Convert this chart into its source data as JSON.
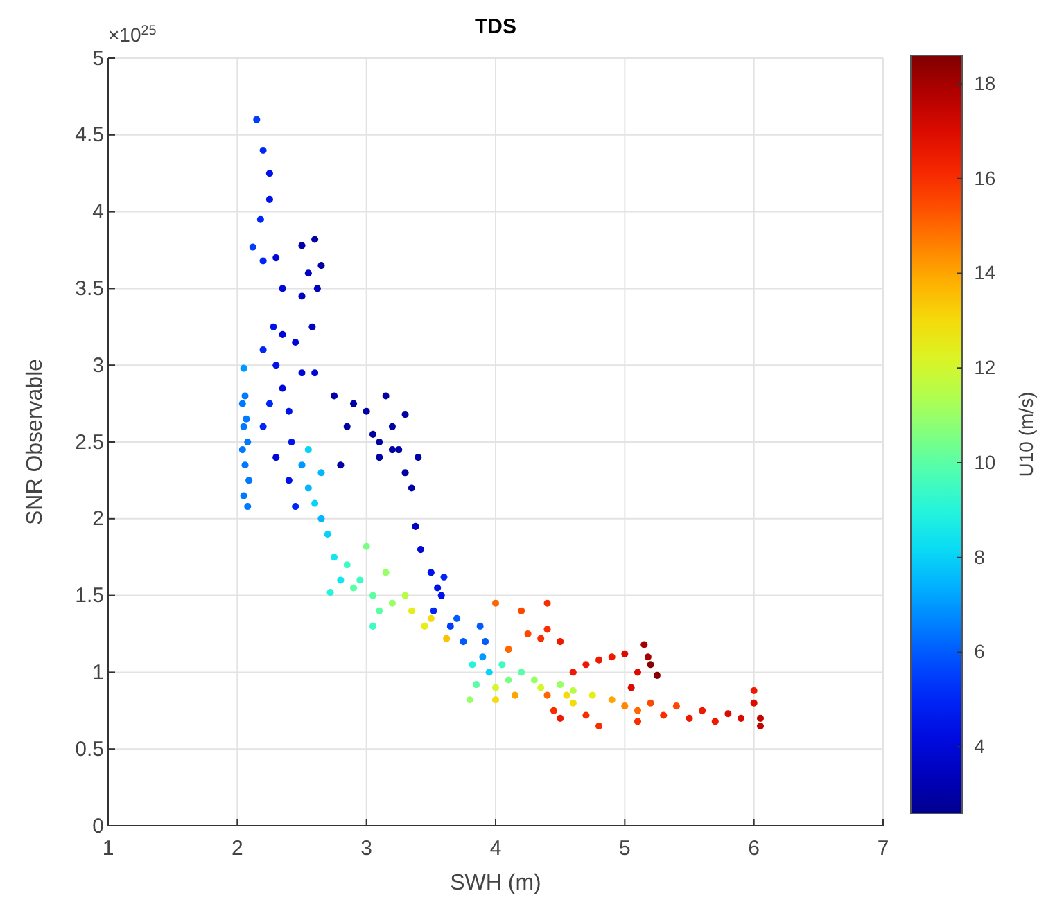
{
  "chart_data": {
    "type": "scatter",
    "title": "TDS",
    "xlabel": "SWH (m)",
    "ylabel": "SNR Observable",
    "clabel": "U10 (m/s)",
    "annotations": [
      "×10$^{25}$"
    ],
    "xlim": [
      1,
      7
    ],
    "xticks": [
      1,
      2,
      3,
      4,
      5,
      6,
      7
    ],
    "ylim": [
      0,
      5
    ],
    "yticks": [
      0,
      0.5,
      1,
      1.5,
      2,
      2.5,
      3,
      3.5,
      4,
      4.5,
      5
    ],
    "clim": [
      2.6,
      18.6
    ],
    "cticks": [
      4,
      6,
      8,
      10,
      12,
      14,
      16,
      18
    ],
    "grid": true,
    "marker": "circle",
    "x": [
      2.05,
      2.06,
      2.04,
      2.07,
      2.05,
      2.08,
      2.04,
      2.06,
      2.09,
      2.05,
      2.08,
      2.15,
      2.2,
      2.25,
      2.25,
      2.18,
      2.12,
      2.2,
      2.3,
      2.35,
      2.28,
      2.3,
      2.2,
      2.35,
      2.4,
      2.45,
      2.5,
      2.5,
      2.6,
      2.65,
      2.55,
      2.62,
      2.58,
      2.42,
      2.3,
      2.4,
      2.5,
      2.2,
      2.25,
      2.6,
      2.35,
      2.75,
      2.9,
      2.85,
      3.0,
      3.05,
      3.1,
      3.15,
      3.25,
      3.3,
      3.4,
      3.35,
      3.2,
      2.8,
      3.1,
      3.2,
      3.3,
      2.5,
      2.55,
      2.6,
      2.65,
      2.7,
      2.55,
      2.75,
      2.8,
      2.72,
      2.65,
      2.45,
      2.85,
      2.9,
      2.95,
      3.0,
      3.05,
      3.1,
      3.15,
      3.2,
      3.3,
      3.35,
      3.05,
      3.45,
      3.5,
      3.38,
      3.42,
      3.5,
      3.55,
      3.6,
      3.58,
      3.52,
      3.65,
      3.7,
      3.75,
      3.62,
      3.82,
      3.85,
      3.8,
      3.9,
      3.95,
      4.0,
      4.05,
      4.1,
      4.15,
      4.2,
      4.3,
      4.35,
      4.4,
      4.5,
      4.55,
      4.6,
      3.92,
      4.0,
      3.88,
      4.0,
      4.2,
      4.4,
      4.25,
      4.35,
      4.1,
      4.5,
      4.6,
      4.7,
      4.8,
      4.9,
      5.0,
      5.1,
      5.05,
      4.4,
      5.15,
      5.2,
      5.25,
      5.18,
      4.45,
      4.5,
      4.7,
      4.8,
      4.9,
      5.0,
      5.1,
      5.2,
      5.3,
      5.4,
      5.5,
      5.6,
      5.7,
      5.8,
      5.9,
      6.0,
      6.05,
      6.0,
      6.05,
      4.6,
      4.75,
      5.1
    ],
    "values": [
      2.98,
      2.8,
      2.75,
      2.65,
      2.6,
      2.5,
      2.45,
      2.35,
      2.25,
      2.15,
      2.08,
      4.6,
      4.4,
      4.25,
      4.08,
      3.95,
      3.77,
      3.68,
      3.7,
      3.5,
      3.25,
      3.0,
      3.1,
      2.85,
      2.7,
      3.15,
      3.45,
      3.78,
      3.82,
      3.65,
      3.6,
      3.5,
      3.25,
      2.5,
      2.4,
      2.25,
      2.95,
      2.6,
      2.75,
      2.95,
      3.2,
      2.8,
      2.75,
      2.6,
      2.7,
      2.55,
      2.5,
      2.8,
      2.45,
      2.3,
      2.4,
      2.2,
      2.6,
      2.35,
      2.4,
      2.45,
      2.68,
      2.35,
      2.2,
      2.1,
      2.0,
      1.9,
      2.45,
      1.75,
      1.6,
      1.52,
      2.3,
      2.08,
      1.7,
      1.55,
      1.6,
      1.82,
      1.5,
      1.4,
      1.65,
      1.45,
      1.5,
      1.4,
      1.3,
      1.3,
      1.35,
      1.95,
      1.8,
      1.65,
      1.55,
      1.62,
      1.5,
      1.4,
      1.3,
      1.35,
      1.2,
      1.22,
      1.05,
      0.92,
      0.82,
      1.1,
      1.0,
      0.9,
      1.05,
      0.95,
      0.85,
      1.0,
      0.95,
      0.9,
      0.85,
      0.92,
      0.85,
      0.88,
      1.2,
      0.82,
      1.3,
      1.45,
      1.4,
      1.45,
      1.25,
      1.22,
      1.15,
      1.2,
      1.0,
      1.05,
      1.08,
      1.1,
      1.12,
      1.0,
      0.9,
      1.28,
      1.18,
      1.05,
      0.98,
      1.1,
      0.75,
      0.7,
      0.72,
      0.65,
      0.82,
      0.78,
      0.75,
      0.8,
      0.72,
      0.78,
      0.7,
      0.75,
      0.68,
      0.73,
      0.7,
      0.8,
      0.7,
      0.88,
      0.65,
      0.8,
      0.85,
      0.68
    ],
    "cvalues": [
      7,
      6.5,
      6.5,
      6.5,
      6.5,
      6.5,
      6.5,
      6.5,
      6.5,
      6.5,
      6.5,
      5.5,
      5,
      4.5,
      4.5,
      5,
      5.5,
      5,
      4,
      4,
      4.5,
      4.5,
      5,
      4,
      4.5,
      4,
      3.5,
      3,
      3,
      3,
      3.5,
      3.5,
      3.5,
      4.5,
      4,
      4.5,
      4,
      5,
      5,
      4,
      4,
      3,
      3,
      3,
      3,
      3,
      3,
      3,
      3,
      3,
      3,
      3,
      3,
      3,
      3,
      3,
      3,
      7,
      7.5,
      8,
      7.5,
      8,
      8,
      8.5,
      8.5,
      9,
      7.5,
      5,
      9.5,
      10,
      9.5,
      10.5,
      10,
      10,
      11,
      11,
      11.5,
      12.5,
      9.5,
      12.5,
      13,
      3.5,
      4,
      4.5,
      4.5,
      5,
      4.5,
      5,
      5.5,
      6,
      6,
      13.5,
      9,
      10,
      11,
      7,
      8,
      12,
      9.5,
      10.5,
      14,
      10,
      11,
      12,
      15,
      11,
      13,
      11.5,
      6,
      13,
      6,
      15,
      15.5,
      16,
      15.5,
      16,
      15,
      16.5,
      16.5,
      16.5,
      16.5,
      16.5,
      17,
      17,
      17,
      16,
      18,
      18.5,
      18.5,
      18,
      16,
      16.5,
      16,
      16,
      14,
      14.5,
      15,
      15.5,
      16,
      15.5,
      16.5,
      16.5,
      16.5,
      17,
      17,
      17,
      17.5,
      16.5,
      17.5,
      13,
      12.5,
      16
    ]
  }
}
